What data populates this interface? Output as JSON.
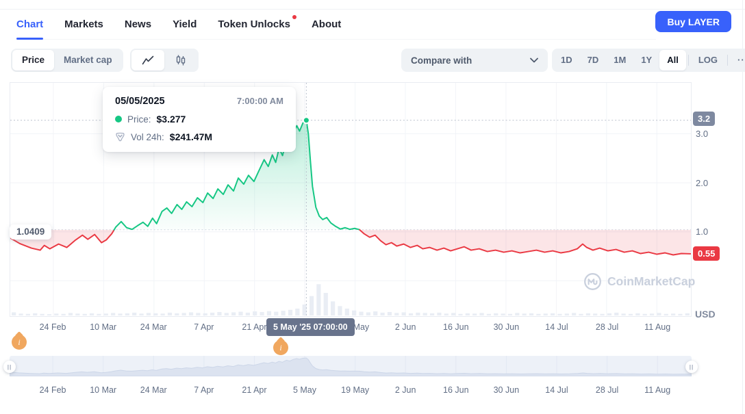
{
  "nav": {
    "tabs": [
      {
        "label": "Chart",
        "active": true
      },
      {
        "label": "Markets"
      },
      {
        "label": "News"
      },
      {
        "label": "Yield"
      },
      {
        "label": "Token Unlocks",
        "dot": true
      },
      {
        "label": "About"
      }
    ],
    "buy_label": "Buy LAYER"
  },
  "toolbar": {
    "metric": {
      "options": [
        "Price",
        "Market cap"
      ],
      "selected": "Price"
    },
    "chart_type_icons": [
      "line-chart-icon",
      "candlestick-icon"
    ],
    "compare": {
      "label": "Compare with",
      "icon": "chevron-down-icon"
    },
    "range": {
      "options": [
        "1D",
        "7D",
        "1M",
        "1Y",
        "All"
      ],
      "selected": "All",
      "log_label": "LOG",
      "more_label": "···"
    }
  },
  "tooltip": {
    "date": "05/05/2025",
    "time": "7:00:00 AM",
    "price_label": "Price:",
    "price_value": "$3.277",
    "vol_label": "Vol 24h:",
    "vol_value": "$241.47M"
  },
  "axis": {
    "badge_top": "3.2",
    "badge_bottom": "0.55",
    "baseline_label": "1.0409",
    "unit": "USD",
    "crosshair_badge": "5 May '25 07:00:00"
  },
  "watermark": "CoinMarketCap",
  "colors": {
    "accent_blue": "#3861fb",
    "green": "#16c784",
    "red": "#ea3943",
    "badge_slate": "#68738c",
    "pin_orange": "#f0a75f"
  },
  "chart_data": {
    "type": "line",
    "ylabel": "USD",
    "baseline": 1.0409,
    "ylim": [
      0,
      3.5
    ],
    "grid": true,
    "y_ticks": [
      {
        "value": 3.0,
        "label": "3.0"
      },
      {
        "value": 2.0,
        "label": "2.0"
      },
      {
        "value": 1.0,
        "label": "1.0"
      }
    ],
    "x_ticks": [
      {
        "t": 0.0633,
        "label": "24 Feb"
      },
      {
        "t": 0.1372,
        "label": "10 Mar"
      },
      {
        "t": 0.2111,
        "label": "24 Mar"
      },
      {
        "t": 0.285,
        "label": "7 Apr"
      },
      {
        "t": 0.3589,
        "label": "21 Apr"
      },
      {
        "t": 0.4327,
        "label": "5 May"
      },
      {
        "t": 0.5067,
        "label": "19 May"
      },
      {
        "t": 0.5805,
        "label": "2 Jun"
      },
      {
        "t": 0.6544,
        "label": "16 Jun"
      },
      {
        "t": 0.7283,
        "label": "30 Jun"
      },
      {
        "t": 0.8022,
        "label": "14 Jul"
      },
      {
        "t": 0.8761,
        "label": "28 Jul"
      },
      {
        "t": 0.95,
        "label": "11 Aug"
      }
    ],
    "peak": {
      "t": 0.435,
      "price": 3.277,
      "date": "05/05/2025",
      "time": "7:00:00 AM"
    },
    "last_price": 0.55,
    "series": [
      {
        "name": "Price",
        "points": [
          [
            0.0,
            0.875
          ],
          [
            0.014,
            0.76
          ],
          [
            0.031,
            0.667
          ],
          [
            0.044,
            0.625
          ],
          [
            0.05,
            0.722
          ],
          [
            0.058,
            0.653
          ],
          [
            0.071,
            0.75
          ],
          [
            0.083,
            0.681
          ],
          [
            0.096,
            0.833
          ],
          [
            0.106,
            0.93
          ],
          [
            0.114,
            0.847
          ],
          [
            0.124,
            0.944
          ],
          [
            0.134,
            0.778
          ],
          [
            0.141,
            0.833
          ],
          [
            0.149,
            0.958
          ],
          [
            0.155,
            1.097
          ],
          [
            0.163,
            1.208
          ],
          [
            0.171,
            1.083
          ],
          [
            0.179,
            1.05
          ],
          [
            0.187,
            1.125
          ],
          [
            0.195,
            1.194
          ],
          [
            0.202,
            1.111
          ],
          [
            0.209,
            1.278
          ],
          [
            0.215,
            1.167
          ],
          [
            0.223,
            1.417
          ],
          [
            0.23,
            1.486
          ],
          [
            0.237,
            1.375
          ],
          [
            0.245,
            1.556
          ],
          [
            0.252,
            1.458
          ],
          [
            0.259,
            1.611
          ],
          [
            0.267,
            1.514
          ],
          [
            0.275,
            1.694
          ],
          [
            0.283,
            1.597
          ],
          [
            0.29,
            1.792
          ],
          [
            0.298,
            1.681
          ],
          [
            0.305,
            1.875
          ],
          [
            0.313,
            1.764
          ],
          [
            0.32,
            1.958
          ],
          [
            0.328,
            1.833
          ],
          [
            0.335,
            2.097
          ],
          [
            0.343,
            1.972
          ],
          [
            0.35,
            2.153
          ],
          [
            0.358,
            2.028
          ],
          [
            0.365,
            2.236
          ],
          [
            0.373,
            2.472
          ],
          [
            0.379,
            2.333
          ],
          [
            0.385,
            2.569
          ],
          [
            0.39,
            2.417
          ],
          [
            0.395,
            2.708
          ],
          [
            0.4,
            2.556
          ],
          [
            0.406,
            2.889
          ],
          [
            0.411,
            2.75
          ],
          [
            0.416,
            3.028
          ],
          [
            0.421,
            3.167
          ],
          [
            0.425,
            3.056
          ],
          [
            0.43,
            3.222
          ],
          [
            0.435,
            3.277
          ],
          [
            0.438,
            3.0
          ],
          [
            0.441,
            2.444
          ],
          [
            0.444,
            1.931
          ],
          [
            0.449,
            1.5
          ],
          [
            0.454,
            1.319
          ],
          [
            0.459,
            1.25
          ],
          [
            0.465,
            1.292
          ],
          [
            0.471,
            1.181
          ],
          [
            0.478,
            1.111
          ],
          [
            0.485,
            1.056
          ],
          [
            0.492,
            1.083
          ],
          [
            0.499,
            1.05
          ],
          [
            0.506,
            1.069
          ],
          [
            0.513,
            1.045
          ],
          [
            0.52,
            0.958
          ],
          [
            0.528,
            0.889
          ],
          [
            0.536,
            0.931
          ],
          [
            0.544,
            0.819
          ],
          [
            0.552,
            0.736
          ],
          [
            0.56,
            0.778
          ],
          [
            0.568,
            0.708
          ],
          [
            0.578,
            0.75
          ],
          [
            0.588,
            0.681
          ],
          [
            0.598,
            0.722
          ],
          [
            0.606,
            0.653
          ],
          [
            0.616,
            0.681
          ],
          [
            0.627,
            0.625
          ],
          [
            0.637,
            0.667
          ],
          [
            0.647,
            0.611
          ],
          [
            0.657,
            0.653
          ],
          [
            0.667,
            0.694
          ],
          [
            0.677,
            0.625
          ],
          [
            0.689,
            0.653
          ],
          [
            0.701,
            0.597
          ],
          [
            0.713,
            0.625
          ],
          [
            0.725,
            0.583
          ],
          [
            0.737,
            0.611
          ],
          [
            0.749,
            0.569
          ],
          [
            0.761,
            0.597
          ],
          [
            0.773,
            0.625
          ],
          [
            0.785,
            0.583
          ],
          [
            0.797,
            0.611
          ],
          [
            0.809,
            0.569
          ],
          [
            0.821,
            0.597
          ],
          [
            0.833,
            0.653
          ],
          [
            0.841,
            0.75
          ],
          [
            0.847,
            0.681
          ],
          [
            0.856,
            0.625
          ],
          [
            0.866,
            0.667
          ],
          [
            0.878,
            0.611
          ],
          [
            0.89,
            0.639
          ],
          [
            0.902,
            0.583
          ],
          [
            0.914,
            0.611
          ],
          [
            0.926,
            0.556
          ],
          [
            0.938,
            0.583
          ],
          [
            0.95,
            0.542
          ],
          [
            0.962,
            0.569
          ],
          [
            0.974,
            0.528
          ],
          [
            0.986,
            0.556
          ],
          [
            1.0,
            0.55
          ]
        ]
      }
    ],
    "volumes": [
      0.1,
      0.06,
      0.05,
      0.07,
      0.05,
      0.04,
      0.06,
      0.05,
      0.08,
      0.06,
      0.05,
      0.07,
      0.05,
      0.06,
      0.08,
      0.06,
      0.07,
      0.09,
      0.06,
      0.08,
      0.07,
      0.06,
      0.09,
      0.07,
      0.08,
      0.1,
      0.08,
      0.07,
      0.09,
      0.11,
      0.08,
      0.1,
      0.12,
      0.09,
      0.13,
      0.11,
      0.14,
      0.12,
      0.15,
      0.18,
      0.22,
      0.35,
      0.62,
      1.0,
      0.72,
      0.45,
      0.3,
      0.22,
      0.16,
      0.12,
      0.1,
      0.13,
      0.09,
      0.11,
      0.08,
      0.1,
      0.07,
      0.09,
      0.08,
      0.07,
      0.09,
      0.06,
      0.08,
      0.05,
      0.07,
      0.06,
      0.08,
      0.05,
      0.07,
      0.06,
      0.05,
      0.08,
      0.06,
      0.07,
      0.05,
      0.06,
      0.07,
      0.05,
      0.06,
      0.08,
      0.05,
      0.07,
      0.06,
      0.05,
      0.07,
      0.09,
      0.06,
      0.05,
      0.07,
      0.05,
      0.06,
      0.08,
      0.05,
      0.06,
      0.05,
      0.07
    ]
  }
}
